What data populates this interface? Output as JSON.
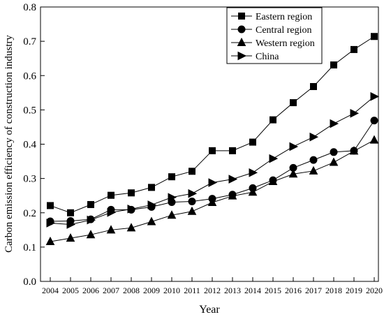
{
  "chart_data": {
    "type": "line",
    "title": "",
    "xlabel": "Year",
    "ylabel": "Carbon emission efficiency of construction industry",
    "x": [
      "2004",
      "2005",
      "2006",
      "2007",
      "2008",
      "2009",
      "2010",
      "2011",
      "2012",
      "2013",
      "2014",
      "2015",
      "2016",
      "2017",
      "2018",
      "2019",
      "2020"
    ],
    "ylim": [
      0,
      0.8
    ],
    "yticks": [
      "0.0",
      "0.1",
      "0.2",
      "0.3",
      "0.4",
      "0.5",
      "0.6",
      "0.7",
      "0.8"
    ],
    "grid": false,
    "legend_position": "top-right",
    "series": [
      {
        "name": "Eastern region",
        "marker": "square",
        "values": [
          0.221,
          0.2,
          0.224,
          0.251,
          0.258,
          0.274,
          0.305,
          0.321,
          0.381,
          0.381,
          0.406,
          0.471,
          0.521,
          0.568,
          0.631,
          0.676,
          0.714
        ]
      },
      {
        "name": "Central region",
        "marker": "circle",
        "values": [
          0.175,
          0.176,
          0.181,
          0.209,
          0.209,
          0.217,
          0.231,
          0.233,
          0.241,
          0.253,
          0.272,
          0.295,
          0.331,
          0.354,
          0.377,
          0.381,
          0.469
        ]
      },
      {
        "name": "Western region",
        "marker": "triangle-up",
        "values": [
          0.116,
          0.126,
          0.136,
          0.15,
          0.156,
          0.174,
          0.193,
          0.204,
          0.23,
          0.249,
          0.26,
          0.291,
          0.313,
          0.322,
          0.347,
          0.38,
          0.412
        ]
      },
      {
        "name": "China",
        "marker": "triangle-right",
        "values": [
          0.17,
          0.166,
          0.179,
          0.201,
          0.211,
          0.223,
          0.245,
          0.256,
          0.288,
          0.298,
          0.317,
          0.358,
          0.393,
          0.421,
          0.46,
          0.49,
          0.539
        ]
      }
    ]
  }
}
